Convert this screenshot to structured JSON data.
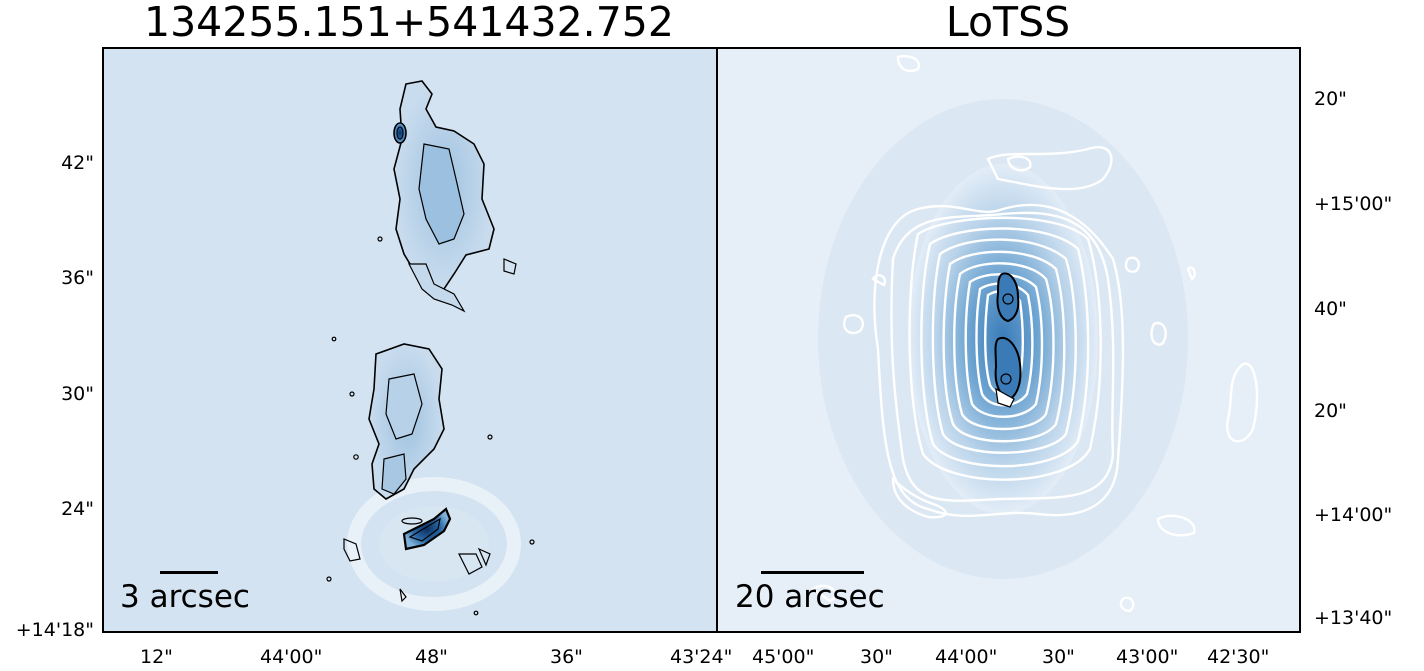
{
  "left_panel": {
    "title": "134255.151+541432.752",
    "scalebar_label": "3 arcsec",
    "y_ticks": [
      "42\"",
      "36\"",
      "30\"",
      "24\"",
      "+14'18\""
    ],
    "x_ticks": [
      "12\"",
      "44'00\"",
      "48\"",
      "36\"",
      "43'24\""
    ]
  },
  "right_panel": {
    "title": "LoTSS",
    "scalebar_label": "20 arcsec",
    "y_ticks": [
      "20\"",
      "+15'00\"",
      "40\"",
      "20\"",
      "+14'00\"",
      "+13'40\""
    ],
    "x_ticks": [
      "45'00\"",
      "30\"",
      "44'00\"",
      "30\"",
      "43'00\"",
      "42'30\""
    ]
  },
  "colors": {
    "background_map": "#d6e4f1",
    "emission_light": "#a9c8e2",
    "emission_dark": "#2d6ea8",
    "contour_black": "#000000",
    "contour_white": "#ffffff"
  }
}
